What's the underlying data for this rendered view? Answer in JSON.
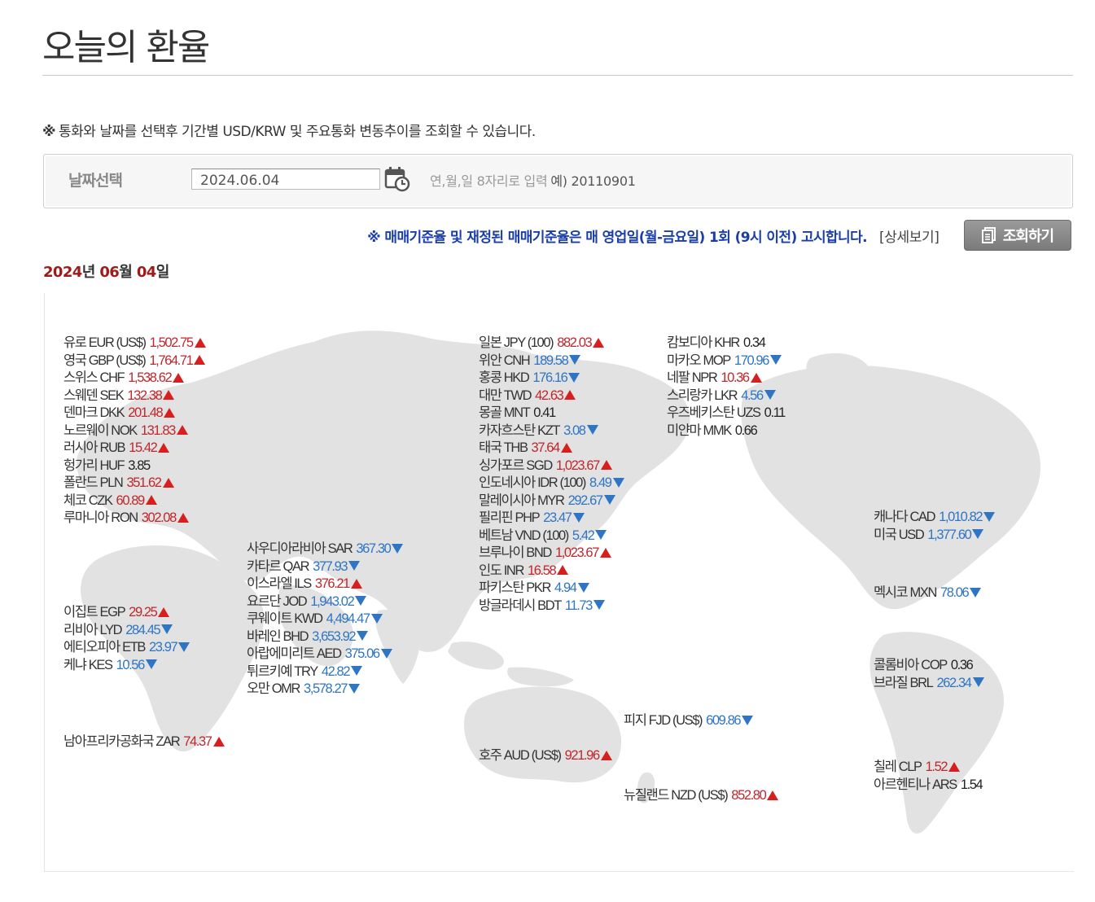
{
  "page": {
    "title": "오늘의 환율",
    "notice_mark": "※",
    "notice": "통화와 날짜를 선택후 기간별 USD/KRW 및 주요통화 변동추이를 조회할 수 있습니다."
  },
  "date_box": {
    "label": "날짜선택",
    "value": "2024.06.04",
    "hint": "연,월,일 8자리로 입력",
    "example": "예) 20110901"
  },
  "announcement": "※ 매매기준율 및 재정된 매매기준율은 매 영업일(월-금요일) 1회 (9시 이전) 고시합니다.",
  "detail_link": "[상세보기]",
  "search_button": "조회하기",
  "current_date": {
    "year": "2024",
    "year_unit": "년",
    "month": "06",
    "month_unit": "월",
    "day": "04",
    "day_unit": "일"
  },
  "colors": {
    "up": "#c0272d",
    "down": "#2f75c4",
    "date_accent": "#a11a1a",
    "announce": "#1a3ea7",
    "map_land": "#e2e2e2"
  },
  "rate_groups": [
    {
      "id": "europe",
      "rates": [
        {
          "name": "유로 EUR (US$)",
          "value": "1,502.75",
          "dir": "up"
        },
        {
          "name": "영국 GBP (US$)",
          "value": "1,764.71",
          "dir": "up"
        },
        {
          "name": "스위스 CHF",
          "value": "1,538.62",
          "dir": "up"
        },
        {
          "name": "스웨덴 SEK",
          "value": "132.38",
          "dir": "up"
        },
        {
          "name": "덴마크 DKK",
          "value": "201.48",
          "dir": "up"
        },
        {
          "name": "노르웨이 NOK",
          "value": "131.83",
          "dir": "up"
        },
        {
          "name": "러시아 RUB",
          "value": "15.42",
          "dir": "up"
        },
        {
          "name": "헝가리 HUF",
          "value": "3.85",
          "dir": "none"
        },
        {
          "name": "폴란드 PLN",
          "value": "351.62",
          "dir": "up"
        },
        {
          "name": "체코 CZK",
          "value": "60.89",
          "dir": "up"
        },
        {
          "name": "루마니아 RON",
          "value": "302.08",
          "dir": "up"
        }
      ]
    },
    {
      "id": "middle-east",
      "rates": [
        {
          "name": "사우디아라비아 SAR",
          "value": "367.30",
          "dir": "down"
        },
        {
          "name": "카타르 QAR",
          "value": "377.93",
          "dir": "down"
        },
        {
          "name": "이스라엘 ILS",
          "value": "376.21",
          "dir": "up"
        },
        {
          "name": "요르단 JOD",
          "value": "1,943.02",
          "dir": "down"
        },
        {
          "name": "쿠웨이트 KWD",
          "value": "4,494.47",
          "dir": "down"
        },
        {
          "name": "바레인 BHD",
          "value": "3,653.92",
          "dir": "down"
        },
        {
          "name": "아랍에미리트 AED",
          "value": "375.06",
          "dir": "down"
        },
        {
          "name": "튀르키예 TRY",
          "value": "42.82",
          "dir": "down"
        },
        {
          "name": "오만 OMR",
          "value": "3,578.27",
          "dir": "down"
        }
      ]
    },
    {
      "id": "africa",
      "rates": [
        {
          "name": "이집트 EGP",
          "value": "29.25",
          "dir": "up"
        },
        {
          "name": "리비아 LYD",
          "value": "284.45",
          "dir": "down"
        },
        {
          "name": "에티오피아 ETB",
          "value": "23.97",
          "dir": "down"
        },
        {
          "name": "케냐 KES",
          "value": "10.56",
          "dir": "down"
        }
      ]
    },
    {
      "id": "south-africa",
      "rates": [
        {
          "name": "남아프리카공화국 ZAR",
          "value": "74.37",
          "dir": "up"
        }
      ]
    },
    {
      "id": "asia",
      "rates": [
        {
          "name": "일본 JPY (100)",
          "value": "882.03",
          "dir": "up"
        },
        {
          "name": "위안 CNH",
          "value": "189.58",
          "dir": "down"
        },
        {
          "name": "홍콩 HKD",
          "value": "176.16",
          "dir": "down"
        },
        {
          "name": "대만 TWD",
          "value": "42.63",
          "dir": "up"
        },
        {
          "name": "몽골 MNT",
          "value": "0.41",
          "dir": "none"
        },
        {
          "name": "카자흐스탄 KZT",
          "value": "3.08",
          "dir": "down"
        },
        {
          "name": "태국 THB",
          "value": "37.64",
          "dir": "up"
        },
        {
          "name": "싱가포르 SGD",
          "value": "1,023.67",
          "dir": "up"
        },
        {
          "name": "인도네시아 IDR (100)",
          "value": "8.49",
          "dir": "down"
        },
        {
          "name": "말레이시아 MYR",
          "value": "292.67",
          "dir": "down"
        },
        {
          "name": "필리핀 PHP",
          "value": "23.47",
          "dir": "down"
        },
        {
          "name": "베트남 VND (100)",
          "value": "5.42",
          "dir": "down"
        },
        {
          "name": "브루나이 BND",
          "value": "1,023.67",
          "dir": "up"
        },
        {
          "name": "인도 INR",
          "value": "16.58",
          "dir": "up"
        },
        {
          "name": "파키스탄 PKR",
          "value": "4.94",
          "dir": "down"
        },
        {
          "name": "방글라데시 BDT",
          "value": "11.73",
          "dir": "down"
        }
      ]
    },
    {
      "id": "asia-2",
      "rates": [
        {
          "name": "캄보디아 KHR",
          "value": "0.34",
          "dir": "none"
        },
        {
          "name": "마카오 MOP",
          "value": "170.96",
          "dir": "down"
        },
        {
          "name": "네팔 NPR",
          "value": "10.36",
          "dir": "up"
        },
        {
          "name": "스리랑카 LKR",
          "value": "4.56",
          "dir": "down"
        },
        {
          "name": "우즈베키스탄 UZS",
          "value": "0.11",
          "dir": "none"
        },
        {
          "name": "미얀마 MMK",
          "value": "0.66",
          "dir": "none"
        }
      ]
    },
    {
      "id": "north-america",
      "rates": [
        {
          "name": "캐나다 CAD",
          "value": "1,010.82",
          "dir": "down"
        },
        {
          "name": "미국 USD",
          "value": "1,377.60",
          "dir": "down"
        }
      ]
    },
    {
      "id": "mexico",
      "rates": [
        {
          "name": "멕시코 MXN",
          "value": "78.06",
          "dir": "down"
        }
      ]
    },
    {
      "id": "south-america",
      "rates": [
        {
          "name": "콜롬비아 COP",
          "value": "0.36",
          "dir": "none"
        },
        {
          "name": "브라질 BRL",
          "value": "262.34",
          "dir": "down"
        }
      ]
    },
    {
      "id": "south-america-2",
      "rates": [
        {
          "name": "칠레 CLP",
          "value": "1.52",
          "dir": "up"
        },
        {
          "name": "아르헨티나 ARS",
          "value": "1.54",
          "dir": "none"
        }
      ]
    },
    {
      "id": "fiji",
      "rates": [
        {
          "name": "피지 FJD (US$)",
          "value": "609.86",
          "dir": "down"
        }
      ]
    },
    {
      "id": "australia",
      "rates": [
        {
          "name": "호주 AUD (US$)",
          "value": "921.96",
          "dir": "up"
        }
      ]
    },
    {
      "id": "new-zealand",
      "rates": [
        {
          "name": "뉴질랜드 NZD (US$)",
          "value": "852.80",
          "dir": "up"
        }
      ]
    }
  ]
}
